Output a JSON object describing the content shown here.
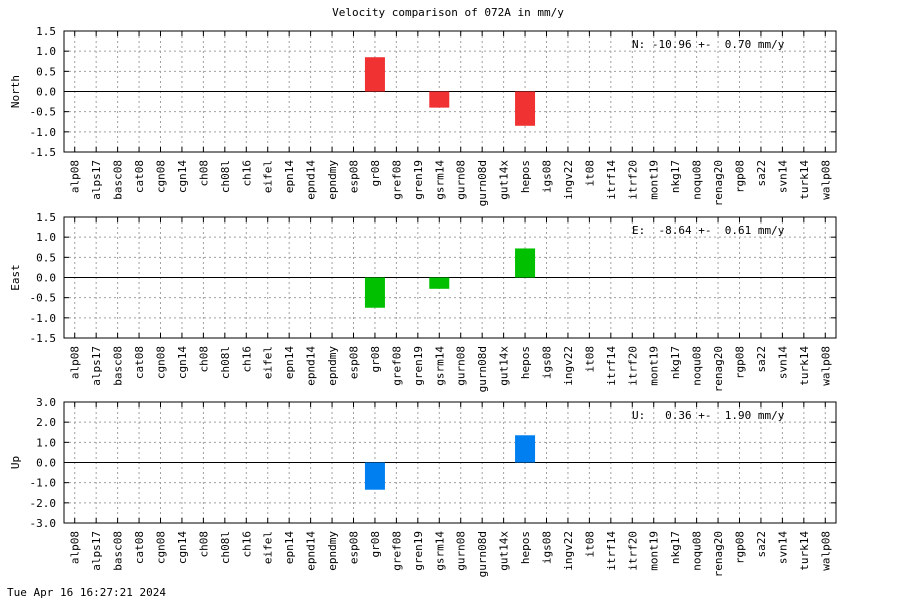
{
  "title": "Velocity comparison of 072A in mm/y",
  "timestamp": "Tue Apr 16 16:27:21 2024",
  "chart_data": [
    {
      "type": "bar",
      "ylabel": "North",
      "ylim": [
        -1.5,
        1.5
      ],
      "yticks": [
        "1.5",
        "1.0",
        "0.5",
        "0.0",
        "-0.5",
        "-1.0",
        "-1.5"
      ],
      "ytick_values": [
        1.5,
        1.0,
        0.5,
        0.0,
        -0.5,
        -1.0,
        -1.5
      ],
      "annotation": "N: -10.96 +-  0.70 mm/y",
      "color": "#f03232",
      "grid": true,
      "categories": [
        "alp08",
        "alps17",
        "basc08",
        "cat08",
        "cgn08",
        "cgn14",
        "ch08",
        "ch08l",
        "ch16",
        "eifel",
        "epn14",
        "epnd14",
        "epndmy",
        "esp08",
        "gr08",
        "gref08",
        "gren19",
        "gsrm14",
        "gurn08",
        "gurn08d",
        "gut14x",
        "hepos",
        "igs08",
        "ingv22",
        "it08",
        "itrf14",
        "itrf20",
        "mont19",
        "nkg17",
        "noqu08",
        "renag20",
        "rgp08",
        "sa22",
        "svn14",
        "turk14",
        "walp08"
      ],
      "values": [
        null,
        null,
        null,
        null,
        null,
        null,
        null,
        null,
        null,
        null,
        null,
        null,
        null,
        null,
        0.85,
        null,
        null,
        -0.4,
        null,
        null,
        null,
        -0.85,
        null,
        null,
        null,
        null,
        null,
        null,
        null,
        null,
        null,
        null,
        null,
        null,
        null,
        null
      ]
    },
    {
      "type": "bar",
      "ylabel": "East",
      "ylim": [
        -1.5,
        1.5
      ],
      "yticks": [
        "1.5",
        "1.0",
        "0.5",
        "0.0",
        "-0.5",
        "-1.0",
        "-1.5"
      ],
      "ytick_values": [
        1.5,
        1.0,
        0.5,
        0.0,
        -0.5,
        -1.0,
        -1.5
      ],
      "annotation": "E:  -8.64 +-  0.61 mm/y",
      "color": "#00c000",
      "grid": true,
      "categories": [
        "alp08",
        "alps17",
        "basc08",
        "cat08",
        "cgn08",
        "cgn14",
        "ch08",
        "ch08l",
        "ch16",
        "eifel",
        "epn14",
        "epnd14",
        "epndmy",
        "esp08",
        "gr08",
        "gref08",
        "gren19",
        "gsrm14",
        "gurn08",
        "gurn08d",
        "gut14x",
        "hepos",
        "igs08",
        "ingv22",
        "it08",
        "itrf14",
        "itrf20",
        "mont19",
        "nkg17",
        "noqu08",
        "renag20",
        "rgp08",
        "sa22",
        "svn14",
        "turk14",
        "walp08"
      ],
      "values": [
        null,
        null,
        null,
        null,
        null,
        null,
        null,
        null,
        null,
        null,
        null,
        null,
        null,
        null,
        -0.75,
        null,
        null,
        -0.28,
        null,
        null,
        null,
        0.72,
        null,
        null,
        null,
        null,
        null,
        null,
        null,
        null,
        null,
        null,
        null,
        null,
        null,
        null
      ]
    },
    {
      "type": "bar",
      "ylabel": "Up",
      "ylim": [
        -3.0,
        3.0
      ],
      "yticks": [
        "3.0",
        "2.0",
        "1.0",
        "0.0",
        "-1.0",
        "-2.0",
        "-3.0"
      ],
      "ytick_values": [
        3.0,
        2.0,
        1.0,
        0.0,
        -1.0,
        -2.0,
        -3.0
      ],
      "annotation": "U:   0.36 +-  1.90 mm/y",
      "color": "#0080f0",
      "grid": true,
      "categories": [
        "alp08",
        "alps17",
        "basc08",
        "cat08",
        "cgn08",
        "cgn14",
        "ch08",
        "ch08l",
        "ch16",
        "eifel",
        "epn14",
        "epnd14",
        "epndmy",
        "esp08",
        "gr08",
        "gref08",
        "gren19",
        "gsrm14",
        "gurn08",
        "gurn08d",
        "gut14x",
        "hepos",
        "igs08",
        "ingv22",
        "it08",
        "itrf14",
        "itrf20",
        "mont19",
        "nkg17",
        "noqu08",
        "renag20",
        "rgp08",
        "sa22",
        "svn14",
        "turk14",
        "walp08"
      ],
      "values": [
        null,
        null,
        null,
        null,
        null,
        null,
        null,
        null,
        null,
        null,
        null,
        null,
        null,
        null,
        -1.35,
        null,
        null,
        null,
        null,
        null,
        null,
        1.35,
        null,
        null,
        null,
        null,
        null,
        null,
        null,
        null,
        null,
        null,
        null,
        null,
        null,
        null
      ]
    }
  ]
}
